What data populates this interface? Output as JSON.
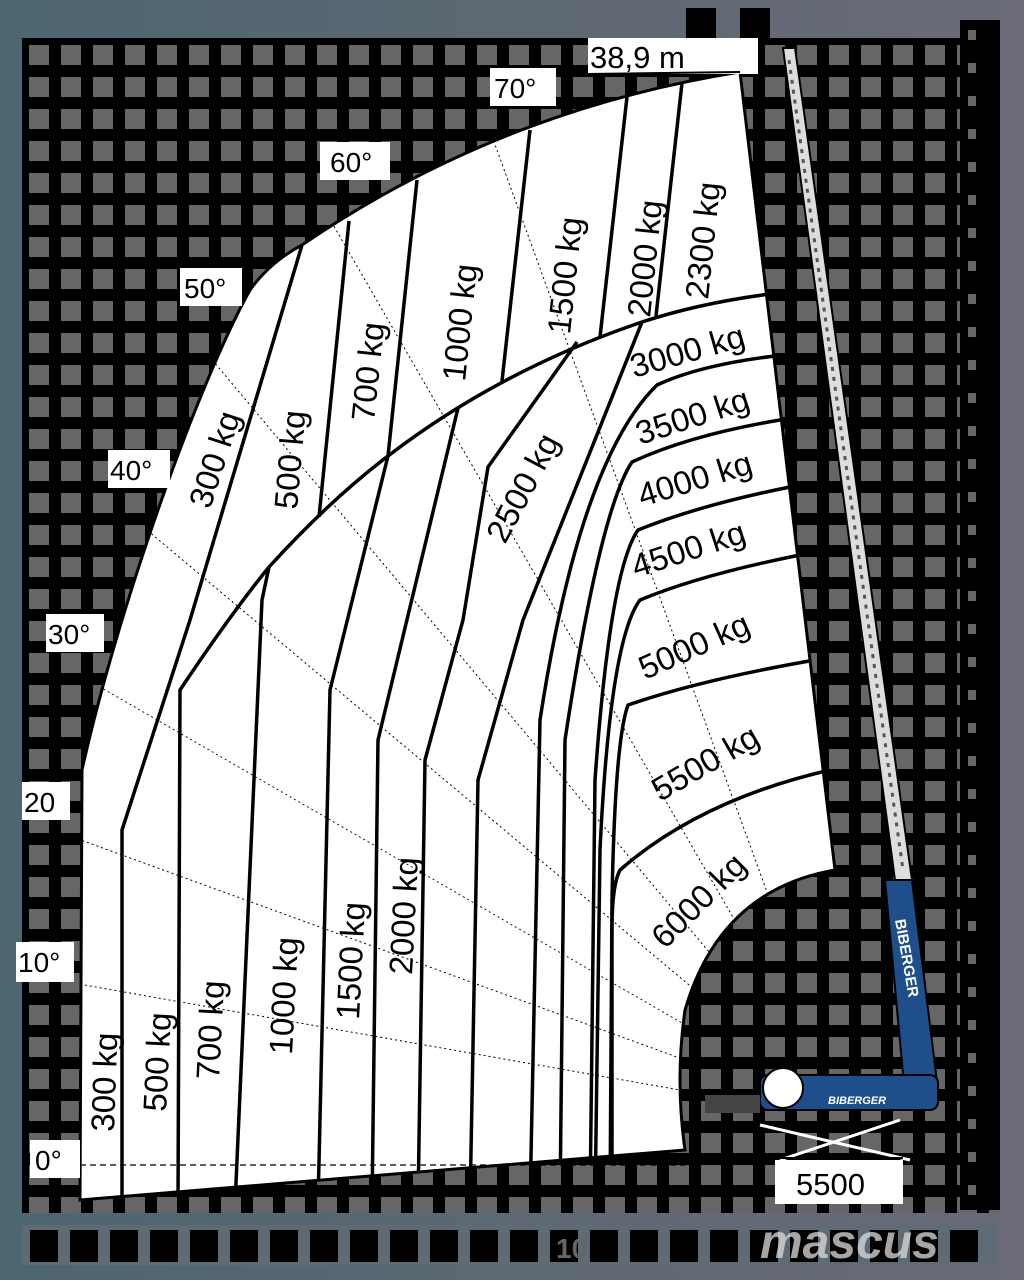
{
  "header": {
    "max_height": "38,9 m"
  },
  "angles": [
    "0°",
    "10°",
    "20",
    "30°",
    "40°",
    "50°",
    "60°",
    "70°"
  ],
  "lower_loads": [
    "300 kg",
    "500 kg",
    "700 kg",
    "1000 kg",
    "1500 kg",
    "2000 kg"
  ],
  "upper_loads": [
    "300 kg",
    "500 kg",
    "700 kg",
    "1000 kg",
    "1500 kg",
    "2000 kg",
    "2300 kg"
  ],
  "arc_loads": [
    "2500 kg",
    "3000 kg",
    "3500 kg",
    "4000 kg",
    "4500 kg",
    "5000 kg",
    "5500 kg",
    "6000 kg"
  ],
  "outrigger_label": "5500",
  "axis_label": "10",
  "brand": "BIBERGER",
  "watermark": "mascus",
  "colors": {
    "panel": "#000000",
    "grid": "#666666",
    "chart": "#ffffff",
    "crane": "#1f4f8a"
  }
}
